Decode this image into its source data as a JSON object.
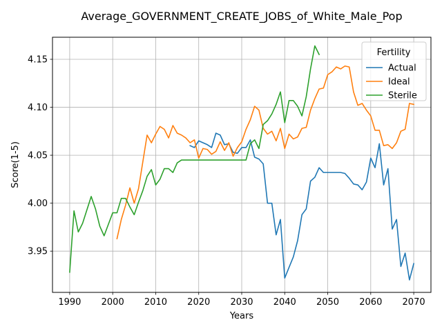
{
  "chart_data": {
    "type": "line",
    "title": "Average_GOVERNMENT_CREATE_JOBS_of_White_Male_Pop",
    "xlabel": "Years",
    "ylabel": "Score(1-5)",
    "xlim": [
      1986.0,
      2074.0
    ],
    "ylim": [
      3.907,
      4.173
    ],
    "xticks": [
      1990,
      2000,
      2010,
      2020,
      2030,
      2040,
      2050,
      2060,
      2070
    ],
    "yticks": [
      3.95,
      4.0,
      4.05,
      4.1,
      4.15
    ],
    "ytick_labels": [
      "3.95",
      "4.00",
      "4.05",
      "4.10",
      "4.15"
    ],
    "grid": true,
    "legend": {
      "title": "Fertility",
      "position": "top-right"
    },
    "series": [
      {
        "name": "Actual",
        "color": "#1f77b4",
        "x": [
          2018,
          2019,
          2020,
          2021,
          2022,
          2023,
          2024,
          2025,
          2026,
          2027,
          2028,
          2029,
          2030,
          2031,
          2032,
          2033,
          2034,
          2035,
          2036,
          2037,
          2038,
          2039,
          2040,
          2041,
          2042,
          2043,
          2044,
          2045,
          2046,
          2047,
          2048,
          2049,
          2050,
          2051,
          2052,
          2053,
          2054,
          2055,
          2056,
          2057,
          2058,
          2059,
          2060,
          2061,
          2062,
          2063,
          2064,
          2065,
          2066,
          2067,
          2068,
          2069,
          2070
        ],
        "y": [
          4.06,
          4.058,
          4.065,
          4.063,
          4.061,
          4.058,
          4.073,
          4.071,
          4.061,
          4.062,
          4.053,
          4.052,
          4.058,
          4.058,
          4.066,
          4.048,
          4.046,
          4.041,
          4.0,
          4.0,
          3.967,
          3.983,
          3.922,
          3.933,
          3.944,
          3.961,
          3.988,
          3.994,
          4.023,
          4.027,
          4.037,
          4.032,
          4.032,
          4.032,
          4.032,
          4.032,
          4.031,
          4.026,
          4.02,
          4.019,
          4.014,
          4.022,
          4.047,
          4.037,
          4.062,
          4.019,
          4.036,
          3.973,
          3.983,
          3.934,
          3.948,
          3.92,
          3.937
        ]
      },
      {
        "name": "Ideal",
        "color": "#ff7f0e",
        "x": [
          2001,
          2002,
          2003,
          2004,
          2005,
          2006,
          2007,
          2008,
          2009,
          2010,
          2011,
          2012,
          2013,
          2014,
          2015,
          2016,
          2017,
          2018,
          2019,
          2020,
          2021,
          2022,
          2023,
          2024,
          2025,
          2026,
          2027,
          2028,
          2029,
          2030,
          2031,
          2032,
          2033,
          2034,
          2035,
          2036,
          2037,
          2038,
          2039,
          2040,
          2041,
          2042,
          2043,
          2044,
          2045,
          2046,
          2047,
          2048,
          2049,
          2050,
          2051,
          2052,
          2053,
          2054,
          2055,
          2056,
          2057,
          2058,
          2059,
          2060,
          2061,
          2062,
          2063,
          2064,
          2065,
          2066,
          2067,
          2068,
          2069,
          2070
        ],
        "y": [
          3.963,
          3.983,
          3.998,
          4.016,
          4.0,
          4.015,
          4.043,
          4.071,
          4.063,
          4.072,
          4.08,
          4.077,
          4.068,
          4.081,
          4.073,
          4.071,
          4.068,
          4.063,
          4.066,
          4.047,
          4.057,
          4.056,
          4.051,
          4.054,
          4.064,
          4.055,
          4.063,
          4.049,
          4.058,
          4.064,
          4.077,
          4.087,
          4.101,
          4.097,
          4.078,
          4.072,
          4.075,
          4.065,
          4.078,
          4.057,
          4.072,
          4.067,
          4.069,
          4.078,
          4.079,
          4.097,
          4.109,
          4.119,
          4.12,
          4.134,
          4.137,
          4.142,
          4.14,
          4.143,
          4.142,
          4.116,
          4.102,
          4.104,
          4.097,
          4.091,
          4.076,
          4.076,
          4.06,
          4.061,
          4.057,
          4.063,
          4.075,
          4.077,
          4.104,
          4.103
        ]
      },
      {
        "name": "Sterile",
        "color": "#2ca02c",
        "x": [
          1990,
          1991,
          1992,
          1993,
          1994,
          1995,
          1996,
          1997,
          1998,
          1999,
          2000,
          2001,
          2002,
          2003,
          2004,
          2005,
          2006,
          2007,
          2008,
          2009,
          2010,
          2011,
          2012,
          2013,
          2014,
          2015,
          2016,
          2017,
          2018,
          2019,
          2020,
          2021,
          2022,
          2023,
          2024,
          2025,
          2026,
          2027,
          2028,
          2029,
          2030,
          2031,
          2032,
          2033,
          2034,
          2035,
          2036,
          2037,
          2038,
          2039,
          2040,
          2041,
          2042,
          2043,
          2044,
          2045,
          2046,
          2047,
          2048
        ],
        "y": [
          3.928,
          3.992,
          3.97,
          3.979,
          3.993,
          4.007,
          3.994,
          3.976,
          3.966,
          3.978,
          3.99,
          3.99,
          4.005,
          4.005,
          3.996,
          3.988,
          4.001,
          4.013,
          4.028,
          4.035,
          4.019,
          4.025,
          4.036,
          4.036,
          4.032,
          4.042,
          4.045,
          4.045,
          4.045,
          4.045,
          4.045,
          4.045,
          4.045,
          4.045,
          4.045,
          4.045,
          4.045,
          4.045,
          4.045,
          4.045,
          4.045,
          4.045,
          4.062,
          4.066,
          4.057,
          4.082,
          4.086,
          4.093,
          4.103,
          4.116,
          4.084,
          4.107,
          4.107,
          4.101,
          4.091,
          4.111,
          4.14,
          4.164,
          4.155
        ]
      }
    ]
  }
}
